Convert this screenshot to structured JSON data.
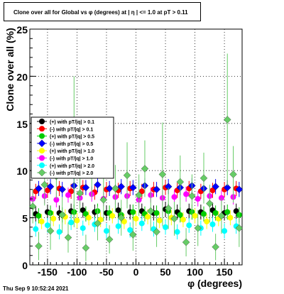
{
  "title": "Clone  over all for Global vs φ (degrees) at |  η | <= 1.0 at pT > 0.11",
  "footer": "Thu Sep  9 10:52:24 2021",
  "chart_data": {
    "type": "scatter",
    "xlabel": "φ (degrees)",
    "ylabel": "Clone  over all (%)",
    "xlim": [
      -180,
      180
    ],
    "ylim": [
      0,
      25
    ],
    "xticks": [
      "-150",
      "-100",
      "-50",
      "0",
      "50",
      "100",
      "150"
    ],
    "yticks": [
      "0",
      "5",
      "10",
      "15",
      "20",
      "25"
    ],
    "grid": true,
    "legend_position": "left-middle",
    "series": [
      {
        "name": "(+) with pT/|q| > 0.1",
        "color": "#000000",
        "marker": "circle",
        "x": [
          -170,
          -150,
          -130,
          -110,
          -90,
          -70,
          -50,
          -30,
          -10,
          10,
          30,
          50,
          70,
          90,
          110,
          130,
          150,
          170
        ],
        "y": [
          5.4,
          5.6,
          5.5,
          5.7,
          5.8,
          5.6,
          5.5,
          5.8,
          5.6,
          5.7,
          5.5,
          5.9,
          5.6,
          5.7,
          5.6,
          5.8,
          5.5,
          5.7
        ]
      },
      {
        "name": "(-) with pT/|q| > 0.1",
        "color": "#ff0000",
        "marker": "circle",
        "x": [
          -170,
          -150,
          -130,
          -110,
          -90,
          -70,
          -50,
          -30,
          -10,
          10,
          30,
          50,
          70,
          90,
          110,
          130,
          150,
          170
        ],
        "y": [
          7.8,
          7.9,
          8.1,
          7.8,
          8.2,
          7.7,
          8.0,
          7.9,
          8.1,
          7.8,
          8.0,
          8.2,
          7.9,
          8.1,
          7.8,
          7.9,
          8.0,
          8.1
        ]
      },
      {
        "name": "(+) with pT/|q| > 0.5",
        "color": "#00cc00",
        "marker": "circle",
        "x": [
          -165,
          -145,
          -125,
          -105,
          -85,
          -65,
          -45,
          -25,
          -5,
          15,
          35,
          55,
          75,
          95,
          115,
          135,
          155,
          175
        ],
        "y": [
          5.2,
          5.5,
          5.3,
          5.6,
          5.4,
          5.7,
          5.5,
          5.3,
          5.6,
          5.4,
          5.5,
          5.7,
          5.3,
          5.6,
          5.4,
          5.5,
          5.6,
          5.3
        ]
      },
      {
        "name": "(-) with pT/|q| > 0.5",
        "color": "#0000ff",
        "marker": "diamond",
        "x": [
          -165,
          -145,
          -125,
          -105,
          -85,
          -65,
          -45,
          -25,
          -5,
          15,
          35,
          55,
          75,
          95,
          115,
          135,
          155,
          175
        ],
        "y": [
          8.1,
          8.3,
          8.0,
          8.4,
          8.2,
          8.5,
          8.1,
          8.3,
          8.2,
          8.4,
          8.0,
          8.3,
          8.2,
          8.4,
          8.1,
          8.3,
          8.2,
          8.0
        ]
      },
      {
        "name": "(+) with pT/|q| > 1.0",
        "color": "#ffff00",
        "marker": "circle",
        "x": [
          -160,
          -140,
          -120,
          -100,
          -80,
          -60,
          -40,
          -20,
          0,
          20,
          40,
          60,
          80,
          100,
          120,
          140,
          160
        ],
        "y": [
          4.6,
          4.9,
          5.1,
          4.7,
          5.0,
          4.8,
          5.2,
          4.6,
          4.9,
          5.1,
          4.7,
          5.0,
          4.8,
          5.2,
          4.6,
          4.9,
          5.0
        ]
      },
      {
        "name": "(-) with pT/|q| > 1.0",
        "color": "#ff00ff",
        "marker": "circle",
        "x": [
          -175,
          -155,
          -135,
          -115,
          -95,
          -75,
          -55,
          -35,
          -15,
          5,
          25,
          45,
          65,
          85,
          105,
          125,
          145,
          165
        ],
        "y": [
          7.0,
          7.3,
          6.9,
          7.4,
          7.1,
          7.5,
          7.0,
          7.2,
          7.3,
          6.9,
          7.4,
          7.1,
          7.2,
          7.5,
          7.0,
          7.3,
          7.1,
          7.2
        ]
      },
      {
        "name": "(+) with pT/|q| > 2.0",
        "color": "#00ffff",
        "marker": "circle",
        "x": [
          -170,
          -150,
          -130,
          -110,
          -90,
          -70,
          -50,
          -30,
          -10,
          10,
          30,
          50,
          70,
          90,
          110,
          130,
          150,
          170
        ],
        "y": [
          3.8,
          4.2,
          3.5,
          4.5,
          3.9,
          4.3,
          3.6,
          4.1,
          3.7,
          4.4,
          3.8,
          4.0,
          3.5,
          4.2,
          3.9,
          4.3,
          3.6,
          4.1
        ]
      },
      {
        "name": "(-) with pT/|q| > 2.0",
        "color": "#66cc66",
        "marker": "diamond",
        "x": [
          -175,
          -165,
          -155,
          -145,
          -135,
          -125,
          -115,
          -105,
          -95,
          -85,
          -75,
          -65,
          -55,
          -45,
          -35,
          -25,
          -15,
          -5,
          5,
          15,
          25,
          35,
          45,
          55,
          65,
          75,
          85,
          95,
          105,
          115,
          125,
          135,
          145,
          155,
          165,
          175
        ],
        "y": [
          6.2,
          2.0,
          8.5,
          3.6,
          9.4,
          5.3,
          2.9,
          12.0,
          7.6,
          1.8,
          9.8,
          4.4,
          6.9,
          2.7,
          8.1,
          5.0,
          9.5,
          3.2,
          7.4,
          10.2,
          5.7,
          3.5,
          9.6,
          6.0,
          4.9,
          8.8,
          2.4,
          7.3,
          3.9,
          9.2,
          6.5,
          1.9,
          5.2,
          15.4,
          9.6,
          3.9
        ],
        "err": [
          1.8,
          1.5,
          2.2,
          2.0,
          2.4,
          1.9,
          1.6,
          8.0,
          2.1,
          1.4,
          2.6,
          1.8,
          2.3,
          1.5,
          2.5,
          1.9,
          3.5,
          1.7,
          2.2,
          3.0,
          2.1,
          1.6,
          5.5,
          2.2,
          1.8,
          2.8,
          1.5,
          2.3,
          1.9,
          2.7,
          2.0,
          1.4,
          1.9,
          7.0,
          3.0,
          2.0
        ]
      }
    ]
  }
}
